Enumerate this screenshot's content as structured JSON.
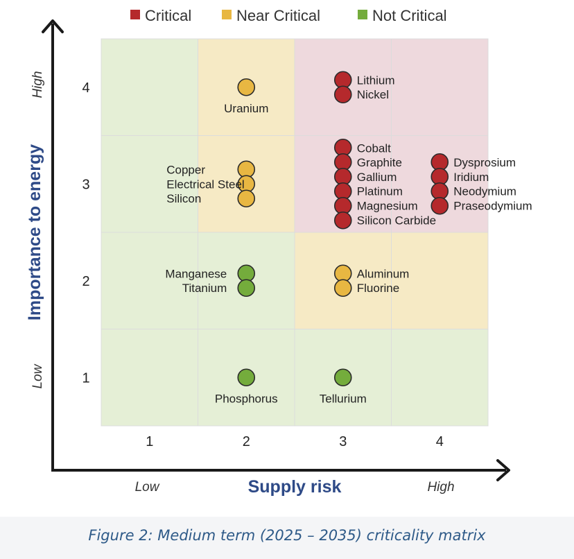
{
  "chart_data": {
    "type": "scatter",
    "legend": [
      {
        "label": "Critical",
        "color": "#b5292c"
      },
      {
        "label": "Near Critical",
        "color": "#e8b742"
      },
      {
        "label": "Not Critical",
        "color": "#74ac3c"
      }
    ],
    "legend_position": "top",
    "xlabel": "Supply risk",
    "ylabel": "Importance to energy",
    "x_low_label": "Low",
    "x_high_label": "High",
    "y_low_label": "Low",
    "y_high_label": "High",
    "x_ticks": [
      "1",
      "2",
      "3",
      "4"
    ],
    "y_ticks": [
      "1",
      "2",
      "3",
      "4"
    ],
    "xlim": [
      0.5,
      4.5
    ],
    "ylim": [
      0.5,
      4.5
    ],
    "zone_colors": {
      "not_critical": "#e5efd6",
      "near_critical": "#f6eac5",
      "critical": "#eed9dd"
    },
    "zones": [
      [
        "not_critical",
        "not_critical",
        "not_critical",
        "not_critical"
      ],
      [
        "not_critical",
        "not_critical",
        "near_critical",
        "near_critical"
      ],
      [
        "not_critical",
        "near_critical",
        "critical",
        "critical"
      ],
      [
        "not_critical",
        "near_critical",
        "critical",
        "critical"
      ]
    ],
    "groups": [
      {
        "x": 2,
        "y": 4,
        "status": "Near Critical",
        "label_side": "below",
        "items": [
          "Uranium"
        ]
      },
      {
        "x": 3,
        "y": 4,
        "status": "Critical",
        "label_side": "right",
        "items": [
          "Lithium",
          "Nickel"
        ]
      },
      {
        "x": 2,
        "y": 3,
        "status": "Near Critical",
        "label_side": "left",
        "items": [
          "Copper",
          "Electrical Steel",
          "Silicon"
        ]
      },
      {
        "x": 3,
        "y": 3,
        "status": "Critical",
        "label_side": "right",
        "items": [
          "Cobalt",
          "Graphite",
          "Gallium",
          "Platinum",
          "Magnesium",
          "Silicon Carbide"
        ]
      },
      {
        "x": 4,
        "y": 3,
        "status": "Critical",
        "label_side": "right",
        "items": [
          "Dysprosium",
          "Iridium",
          "Neodymium",
          "Praseodymium"
        ]
      },
      {
        "x": 2,
        "y": 2,
        "status": "Not Critical",
        "label_side": "left",
        "items": [
          "Manganese",
          "Titanium"
        ]
      },
      {
        "x": 3,
        "y": 2,
        "status": "Near Critical",
        "label_side": "right",
        "items": [
          "Aluminum",
          "Fluorine"
        ]
      },
      {
        "x": 2,
        "y": 1,
        "status": "Not Critical",
        "label_side": "below",
        "items": [
          "Phosphorus"
        ]
      },
      {
        "x": 3,
        "y": 1,
        "status": "Not Critical",
        "label_side": "below",
        "items": [
          "Tellurium"
        ]
      }
    ]
  },
  "caption": "Figure 2: Medium term (2025 – 2035) criticality matrix"
}
